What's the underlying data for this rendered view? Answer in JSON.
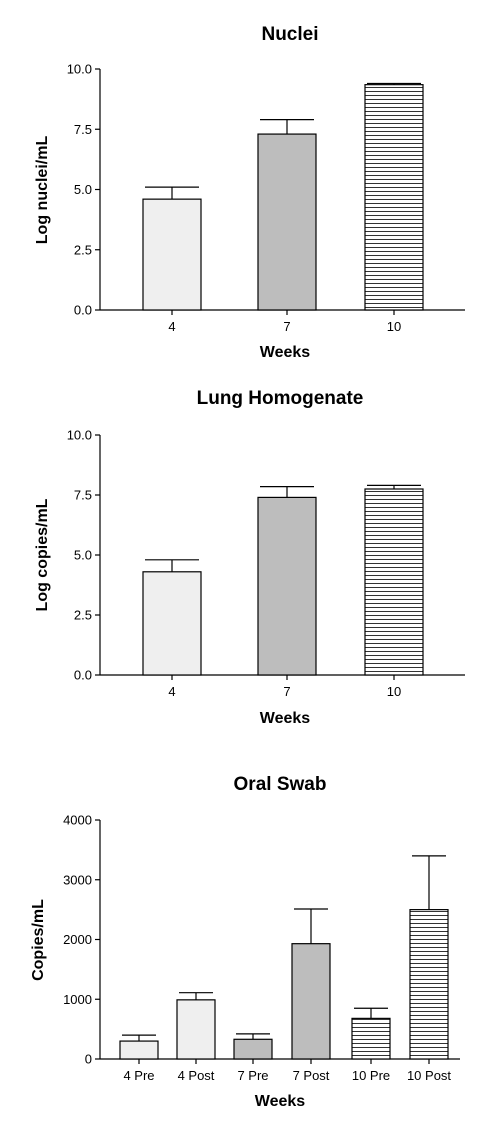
{
  "chart_data": [
    {
      "type": "bar",
      "title": "Nuclei",
      "xlabel": "Weeks",
      "ylabel": "Log nuclei/mL",
      "ylim": [
        0,
        10
      ],
      "yticks": [
        "0.0",
        "2.5",
        "5.0",
        "7.5",
        "10.0"
      ],
      "categories": [
        "4",
        "7",
        "10"
      ],
      "values": [
        4.6,
        7.3,
        9.35
      ],
      "errors": [
        0.5,
        0.6,
        0.05
      ],
      "fills": [
        "light",
        "gray",
        "hatched"
      ],
      "grid": false,
      "legend": "none"
    },
    {
      "type": "bar",
      "title": "Lung Homogenate",
      "xlabel": "Weeks",
      "ylabel": "Log copies/mL",
      "ylim": [
        0,
        10
      ],
      "yticks": [
        "0.0",
        "2.5",
        "5.0",
        "7.5",
        "10.0"
      ],
      "categories": [
        "4",
        "7",
        "10"
      ],
      "values": [
        4.3,
        7.4,
        7.75
      ],
      "errors": [
        0.5,
        0.45,
        0.15
      ],
      "fills": [
        "light",
        "gray",
        "hatched"
      ],
      "grid": false,
      "legend": "none"
    },
    {
      "type": "bar",
      "title": "Oral Swab",
      "xlabel": "Weeks",
      "ylabel": "Copies/mL",
      "ylim": [
        0,
        4000
      ],
      "yticks": [
        "0",
        "1000",
        "2000",
        "3000",
        "4000"
      ],
      "categories": [
        "4 Pre",
        "4 Post",
        "7 Pre",
        "7 Post",
        "10 Pre",
        "10 Post"
      ],
      "values": [
        300,
        990,
        330,
        1930,
        680,
        2500
      ],
      "errors": [
        100,
        120,
        90,
        580,
        170,
        900
      ],
      "fills": [
        "light",
        "light",
        "gray",
        "gray",
        "hatched",
        "hatched"
      ],
      "grid": false,
      "legend": "none"
    }
  ],
  "colors": {
    "light": "#efefef",
    "gray": "#bdbdbd",
    "hatched_fill": "#ffffff",
    "hatch_line": "#000000",
    "axis": "#000000"
  }
}
